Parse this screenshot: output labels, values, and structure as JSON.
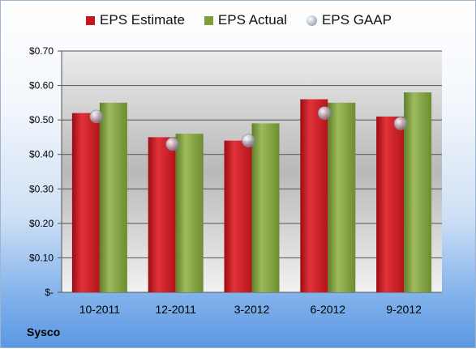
{
  "chart_data": {
    "type": "bar",
    "categories": [
      "10-2011",
      "12-2011",
      "3-2012",
      "6-2012",
      "9-2012"
    ],
    "series": [
      {
        "name": "EPS Estimate",
        "values": [
          0.52,
          0.45,
          0.44,
          0.56,
          0.51
        ],
        "color": "#c8161d",
        "kind": "bar"
      },
      {
        "name": "EPS Actual",
        "values": [
          0.55,
          0.46,
          0.49,
          0.55,
          0.58
        ],
        "color": "#7e9f3c",
        "kind": "bar"
      },
      {
        "name": "EPS GAAP",
        "values": [
          0.51,
          0.43,
          0.44,
          0.52,
          0.49
        ],
        "color": "#a9b4c2",
        "kind": "marker"
      }
    ],
    "y_ticks": [
      {
        "value": 0.7,
        "label": "$0.70"
      },
      {
        "value": 0.6,
        "label": "$0.60"
      },
      {
        "value": 0.5,
        "label": "$0.50"
      },
      {
        "value": 0.4,
        "label": "$0.40"
      },
      {
        "value": 0.3,
        "label": "$0.30"
      },
      {
        "value": 0.2,
        "label": "$0.20"
      },
      {
        "value": 0.1,
        "label": "$0.10"
      },
      {
        "value": 0,
        "label": "$-"
      }
    ],
    "ylim": [
      0,
      0.7
    ],
    "grid": true,
    "legend_position": "top",
    "company": "Sysco"
  }
}
